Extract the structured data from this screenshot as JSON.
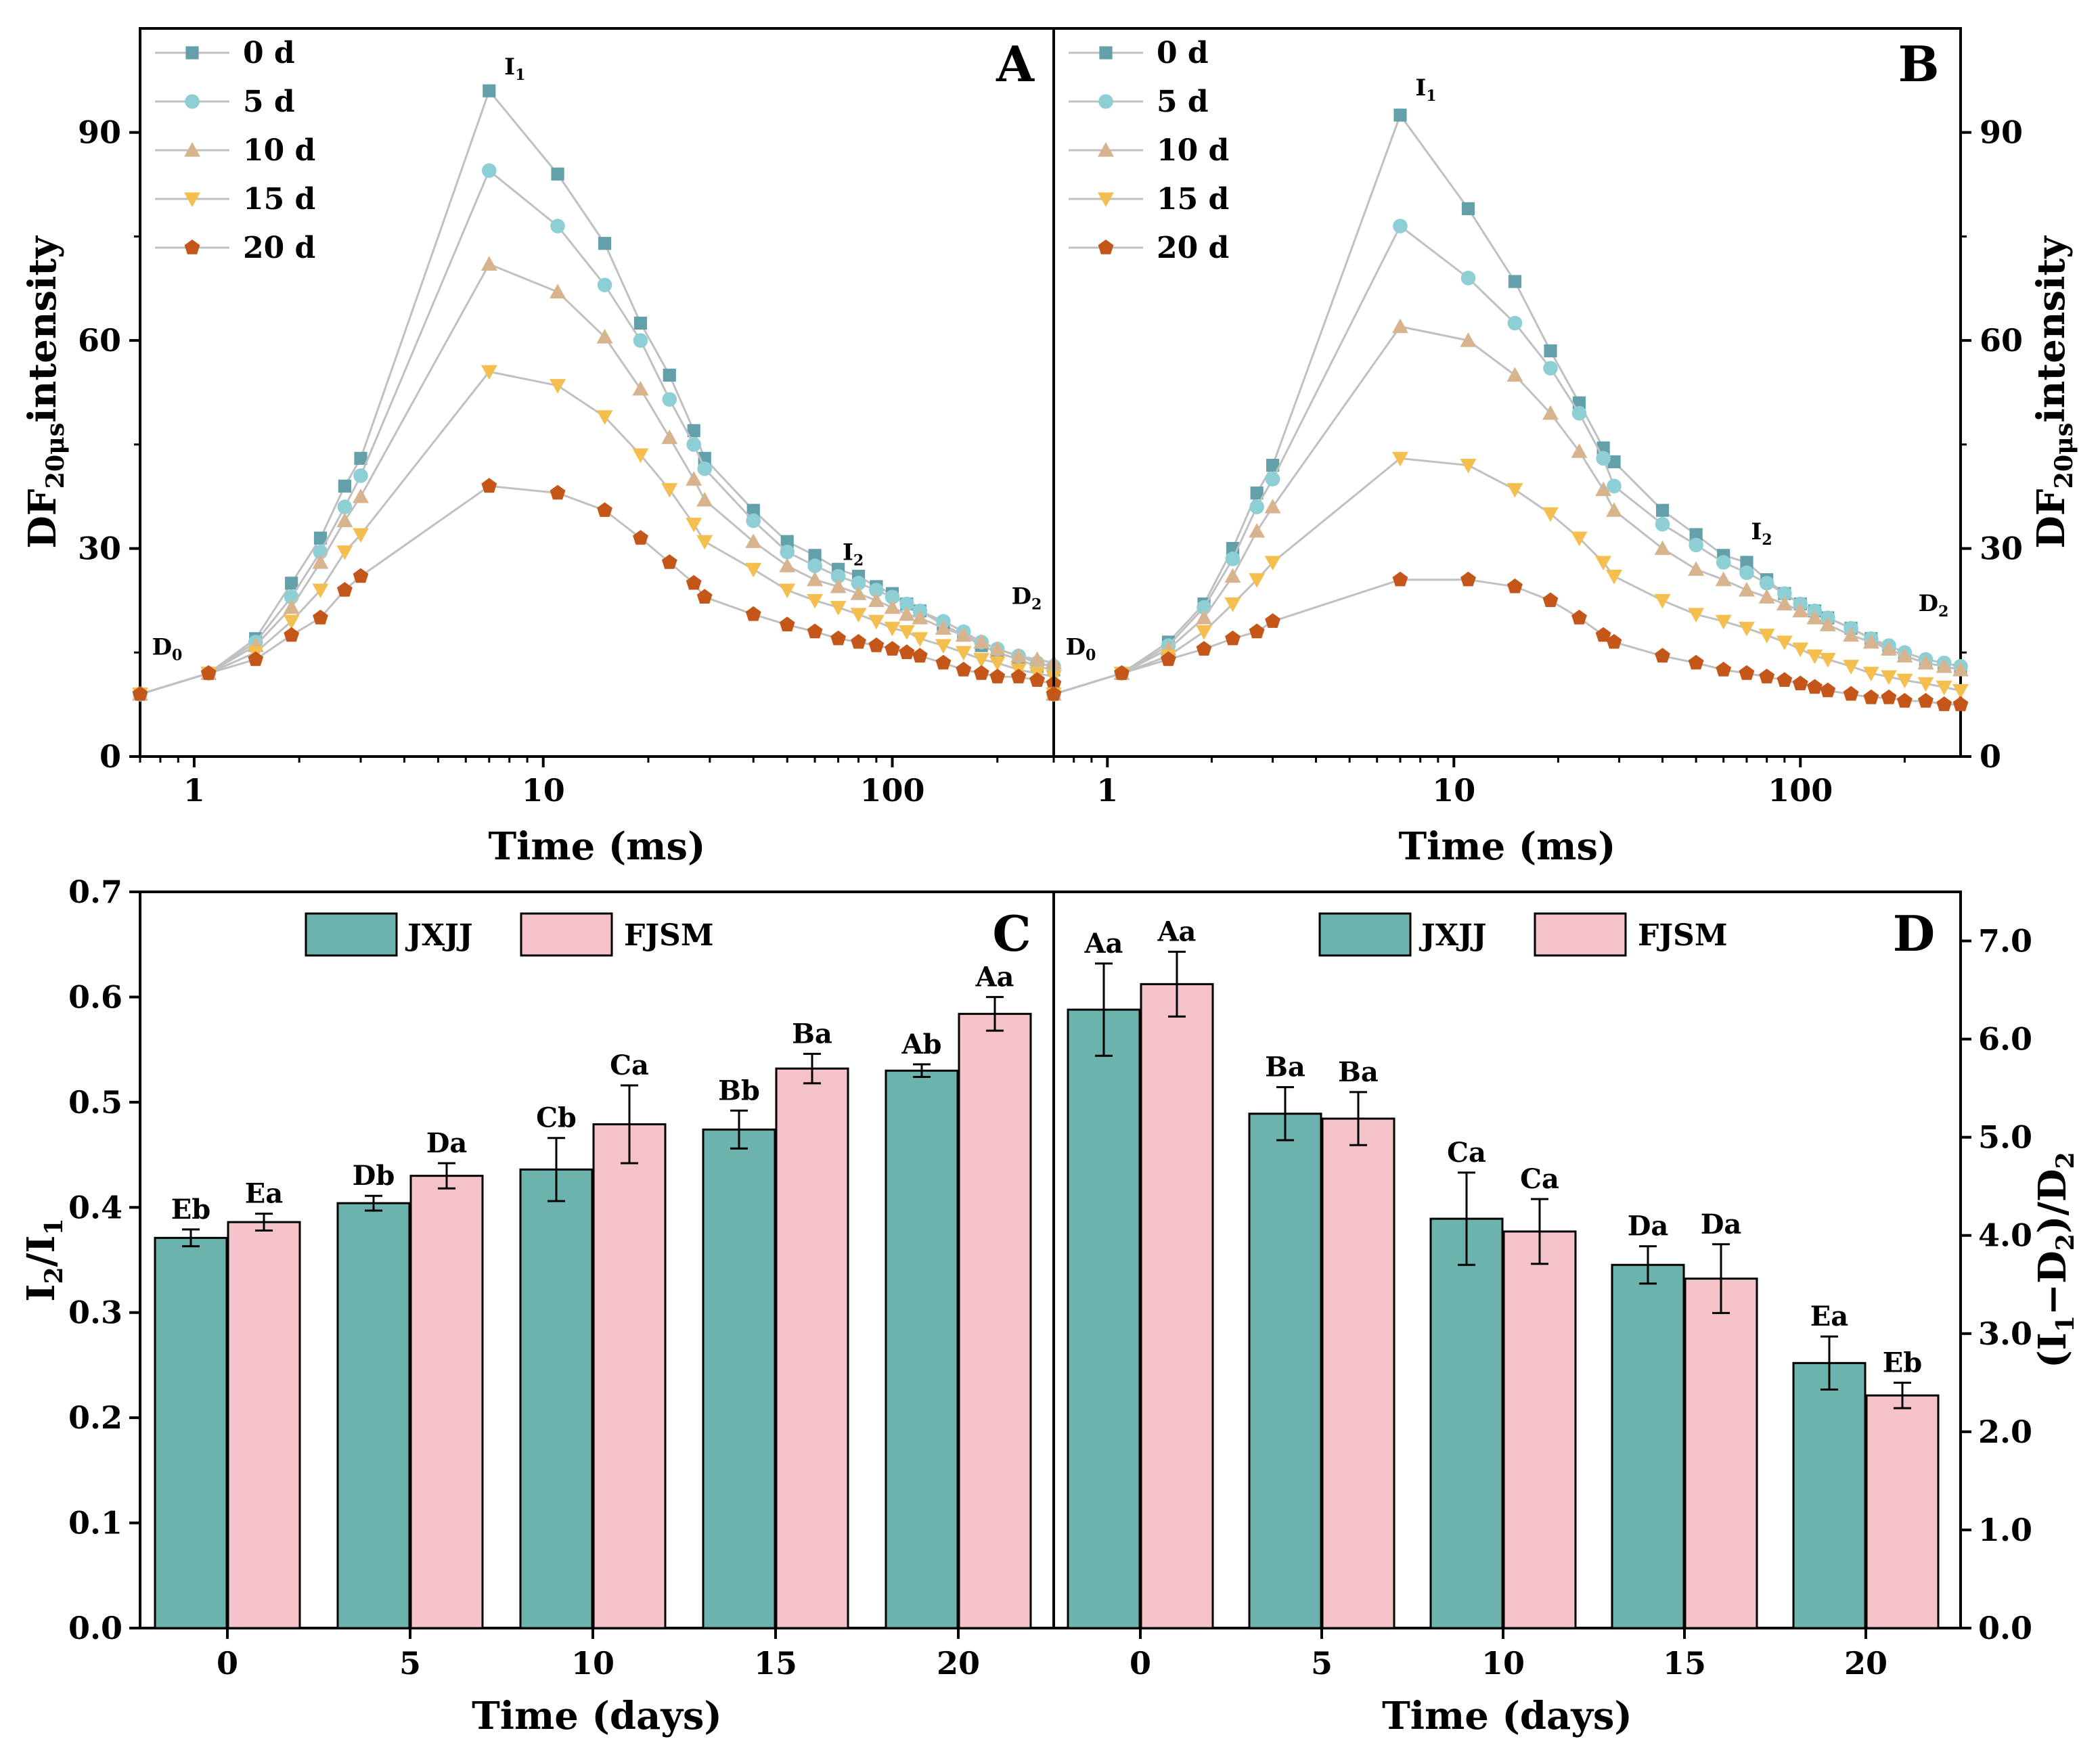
{
  "colors": {
    "c0": "#64a0aa",
    "c5": "#8ecfd6",
    "c10": "#d8b48e",
    "c15": "#f4bf4f",
    "c20": "#c4561a",
    "jxjj": "#6bb3ac",
    "fjsm": "#f4c2c8",
    "line": "#c0c0c0"
  },
  "top_panels": {
    "xlabel": "Time (ms)",
    "ylabel_main": "DF",
    "ylabel_sub": "20μs",
    "ylabel_rest": "intensity",
    "x_ticks": [
      "1",
      "10",
      "100"
    ],
    "y_ticks": [
      "0",
      "30",
      "60",
      "90"
    ],
    "legend": [
      "0 d",
      "5 d",
      "10 d",
      "15 d",
      "20 d"
    ]
  },
  "bottom_panels": {
    "xlabel": "Time (days)",
    "legend": [
      "JXJJ",
      "FJSM"
    ],
    "x_ticks": [
      "0",
      "5",
      "10",
      "15",
      "20"
    ],
    "c_y_ticks": [
      "0.0",
      "0.1",
      "0.2",
      "0.3",
      "0.4",
      "0.5",
      "0.6",
      "0.7"
    ],
    "d_y_ticks": [
      "0.0",
      "1.0",
      "2.0",
      "3.0",
      "4.0",
      "5.0",
      "6.0",
      "7.0"
    ],
    "c_ylabel": {
      "a": "I",
      "a_sub": "2",
      "b": "/I",
      "b_sub": "1"
    },
    "d_ylabel": {
      "a": "(I",
      "a_sub": "1",
      "b": "−D",
      "b_sub": "2",
      "c": ")/D",
      "c_sub": "2"
    }
  },
  "chart_data": [
    {
      "panel": "A",
      "type": "line",
      "xscale": "log",
      "xlabel": "Time (ms)",
      "ylabel": "DF20μs intensity",
      "xlim": [
        0.7,
        290
      ],
      "ylim": [
        0,
        105
      ],
      "annotations": [
        {
          "main": "I",
          "sub": "1",
          "x": 7,
          "y": 96
        },
        {
          "main": "I",
          "sub": "2",
          "x": 70,
          "y": 26
        },
        {
          "main": "D",
          "sub": "0",
          "x": 0.7,
          "y": 10
        },
        {
          "main": "D",
          "sub": "2",
          "x": 290,
          "y": 14
        }
      ],
      "series": [
        {
          "name": "0 d",
          "marker": "square",
          "x": [
            0.7,
            1.1,
            1.5,
            1.9,
            2.3,
            2.7,
            3,
            7,
            11,
            15,
            19,
            23,
            27,
            29,
            40,
            50,
            60,
            70,
            80,
            90,
            100,
            110,
            120,
            140,
            160,
            180,
            200,
            230,
            260,
            290
          ],
          "y": [
            9,
            12,
            17,
            25,
            31.5,
            39,
            43,
            96,
            84,
            74,
            62.5,
            55,
            47,
            43,
            35.5,
            31,
            29,
            27,
            26,
            24.5,
            23.5,
            22,
            21,
            19,
            17.5,
            16,
            15,
            14,
            13,
            12.5
          ]
        },
        {
          "name": "5 d",
          "marker": "circle",
          "x": [
            0.7,
            1.1,
            1.5,
            1.9,
            2.3,
            2.7,
            3,
            7,
            11,
            15,
            19,
            23,
            27,
            29,
            40,
            50,
            60,
            70,
            80,
            90,
            100,
            110,
            120,
            140,
            160,
            180,
            200,
            230,
            260,
            290
          ],
          "y": [
            9,
            12,
            16.5,
            23,
            29.5,
            36,
            40.5,
            84.5,
            76.5,
            68,
            60,
            51.5,
            45,
            41.5,
            34,
            29.5,
            27.5,
            26,
            25,
            24,
            23,
            22,
            21,
            19.5,
            18,
            16.5,
            15.5,
            14.5,
            13.5,
            13
          ]
        },
        {
          "name": "10 d",
          "marker": "triangle-up",
          "x": [
            0.7,
            1.1,
            1.5,
            1.9,
            2.3,
            2.7,
            3,
            7,
            11,
            15,
            19,
            23,
            27,
            29,
            40,
            50,
            60,
            70,
            80,
            90,
            100,
            110,
            120,
            140,
            160,
            180,
            200,
            230,
            260,
            290
          ],
          "y": [
            9,
            12,
            16,
            21.5,
            28,
            34,
            37.5,
            71,
            67,
            60.5,
            53,
            46,
            40,
            37,
            31,
            27.5,
            25.5,
            24.5,
            23.5,
            22.5,
            21.5,
            20.5,
            20,
            18.5,
            17.5,
            16.5,
            15.5,
            14.5,
            14,
            13.5
          ]
        },
        {
          "name": "15 d",
          "marker": "triangle-down",
          "x": [
            0.7,
            1.1,
            1.5,
            1.9,
            2.3,
            2.7,
            3,
            7,
            11,
            15,
            19,
            23,
            27,
            29,
            40,
            50,
            60,
            70,
            80,
            90,
            100,
            110,
            120,
            140,
            160,
            180,
            200,
            230,
            260,
            290
          ],
          "y": [
            9,
            12,
            15,
            19.5,
            24,
            29.5,
            32,
            55.5,
            53.5,
            49,
            43.5,
            38.5,
            33.5,
            31,
            27,
            24,
            22.5,
            21.5,
            20.5,
            19.5,
            18.5,
            18,
            17,
            16,
            15,
            14,
            13.5,
            12.5,
            12,
            11.5
          ]
        },
        {
          "name": "20 d",
          "marker": "pentagon",
          "x": [
            0.7,
            1.1,
            1.5,
            1.9,
            2.3,
            2.7,
            3,
            7,
            11,
            15,
            19,
            23,
            27,
            29,
            40,
            50,
            60,
            70,
            80,
            90,
            100,
            110,
            120,
            140,
            160,
            180,
            200,
            230,
            260,
            290
          ],
          "y": [
            9,
            12,
            14,
            17.5,
            20,
            24,
            26,
            39,
            38,
            35.5,
            31.5,
            28,
            25,
            23,
            20.5,
            19,
            18,
            17,
            16.5,
            16,
            15.5,
            15,
            14.5,
            13.5,
            12.5,
            12,
            11.5,
            11.5,
            11,
            10.5
          ]
        }
      ]
    },
    {
      "panel": "B",
      "type": "line",
      "xscale": "log",
      "xlabel": "Time (ms)",
      "ylabel": "DF20μs intensity",
      "xlim": [
        0.7,
        290
      ],
      "ylim": [
        0,
        105
      ],
      "annotations": [
        {
          "main": "I",
          "sub": "1",
          "x": 7,
          "y": 93
        },
        {
          "main": "I",
          "sub": "2",
          "x": 70,
          "y": 29
        },
        {
          "main": "D",
          "sub": "0",
          "x": 0.7,
          "y": 10
        },
        {
          "main": "D",
          "sub": "2",
          "x": 290,
          "y": 13
        }
      ],
      "series": [
        {
          "name": "0 d",
          "marker": "square",
          "x": [
            0.7,
            1.1,
            1.5,
            1.9,
            2.3,
            2.7,
            3,
            7,
            11,
            15,
            19,
            23,
            27,
            29,
            40,
            50,
            60,
            70,
            80,
            90,
            100,
            110,
            120,
            140,
            160,
            180,
            200,
            230,
            260,
            290
          ],
          "y": [
            9,
            12,
            16.5,
            22,
            30,
            38,
            42,
            92.5,
            79,
            68.5,
            58.5,
            51,
            44.5,
            42.5,
            35.5,
            32,
            29,
            28,
            25.5,
            23.5,
            22,
            21,
            20,
            18.5,
            17,
            15.5,
            14.5,
            13.5,
            13,
            12.5
          ]
        },
        {
          "name": "5 d",
          "marker": "circle",
          "x": [
            0.7,
            1.1,
            1.5,
            1.9,
            2.3,
            2.7,
            3,
            7,
            11,
            15,
            19,
            23,
            27,
            29,
            40,
            50,
            60,
            70,
            80,
            90,
            100,
            110,
            120,
            140,
            160,
            180,
            200,
            230,
            260,
            290
          ],
          "y": [
            9,
            12,
            16,
            21.5,
            28.5,
            36,
            40,
            76.5,
            69,
            62.5,
            56,
            49.5,
            43,
            39,
            33.5,
            30.5,
            28,
            26.5,
            25,
            23.5,
            22,
            21,
            20,
            18.5,
            17,
            16,
            15,
            14,
            13.5,
            13
          ]
        },
        {
          "name": "10 d",
          "marker": "triangle-up",
          "x": [
            0.7,
            1.1,
            1.5,
            1.9,
            2.3,
            2.7,
            3,
            7,
            11,
            15,
            19,
            23,
            27,
            29,
            40,
            50,
            60,
            70,
            80,
            90,
            100,
            110,
            120,
            140,
            160,
            180,
            200,
            230,
            260,
            290
          ],
          "y": [
            9,
            12,
            15.5,
            20,
            26,
            32.5,
            36,
            62,
            60,
            55,
            49.5,
            44,
            38.5,
            35.5,
            30,
            27,
            25.5,
            24,
            23,
            22,
            21,
            20,
            19,
            17.5,
            16.5,
            15.5,
            14.5,
            13.5,
            13,
            12.5
          ]
        },
        {
          "name": "15 d",
          "marker": "triangle-down",
          "x": [
            0.7,
            1.1,
            1.5,
            1.9,
            2.3,
            2.7,
            3,
            7,
            11,
            15,
            19,
            23,
            27,
            29,
            40,
            50,
            60,
            70,
            80,
            90,
            100,
            110,
            120,
            140,
            160,
            180,
            200,
            230,
            260,
            290
          ],
          "y": [
            9,
            12,
            14.5,
            18,
            22,
            25.5,
            28,
            43,
            42,
            38.5,
            35,
            31.5,
            28,
            26,
            22.5,
            20.5,
            19.5,
            18.5,
            17.5,
            16.5,
            15.5,
            14.5,
            14,
            13,
            12,
            11.5,
            11,
            10.5,
            10,
            9.5
          ]
        },
        {
          "name": "20 d",
          "marker": "pentagon",
          "x": [
            0.7,
            1.1,
            1.5,
            1.9,
            2.3,
            2.7,
            3,
            7,
            11,
            15,
            19,
            23,
            27,
            29,
            40,
            50,
            60,
            70,
            80,
            90,
            100,
            110,
            120,
            140,
            160,
            180,
            200,
            230,
            260,
            290
          ],
          "y": [
            9,
            12,
            14,
            15.5,
            17,
            18,
            19.5,
            25.5,
            25.5,
            24.5,
            22.5,
            20,
            17.5,
            16.5,
            14.5,
            13.5,
            12.5,
            12,
            11.5,
            11,
            10.5,
            10,
            9.5,
            9,
            8.5,
            8.5,
            8,
            8,
            7.5,
            7.5
          ]
        }
      ]
    },
    {
      "panel": "C",
      "type": "bar",
      "xlabel": "Time (days)",
      "ylabel": "I2/I1",
      "ylim": [
        0,
        0.7
      ],
      "categories": [
        "0",
        "5",
        "10",
        "15",
        "20"
      ],
      "series": [
        {
          "name": "JXJJ",
          "values": [
            0.371,
            0.404,
            0.436,
            0.474,
            0.53
          ],
          "errors": [
            0.008,
            0.007,
            0.03,
            0.018,
            0.006
          ],
          "labels": [
            "Eb",
            "Db",
            "Cb",
            "Bb",
            "Ab"
          ]
        },
        {
          "name": "FJSM",
          "values": [
            0.386,
            0.43,
            0.479,
            0.532,
            0.584
          ],
          "errors": [
            0.008,
            0.012,
            0.037,
            0.014,
            0.016
          ],
          "labels": [
            "Ea",
            "Da",
            "Ca",
            "Ba",
            "Aa"
          ]
        }
      ]
    },
    {
      "panel": "D",
      "type": "bar",
      "xlabel": "Time (days)",
      "ylabel": "(I1−D2)/D2",
      "ylim": [
        0,
        7.5
      ],
      "categories": [
        "0",
        "5",
        "10",
        "15",
        "20"
      ],
      "series": [
        {
          "name": "JXJJ",
          "values": [
            6.3,
            5.24,
            4.17,
            3.7,
            2.7
          ],
          "errors": [
            0.47,
            0.27,
            0.47,
            0.19,
            0.27
          ],
          "labels": [
            "Aa",
            "Ba",
            "Ca",
            "Da",
            "Ea"
          ]
        },
        {
          "name": "FJSM",
          "values": [
            6.56,
            5.19,
            4.04,
            3.56,
            2.37
          ],
          "errors": [
            0.33,
            0.27,
            0.33,
            0.35,
            0.13
          ],
          "labels": [
            "Aa",
            "Ba",
            "Ca",
            "Da",
            "Eb"
          ]
        }
      ]
    }
  ]
}
